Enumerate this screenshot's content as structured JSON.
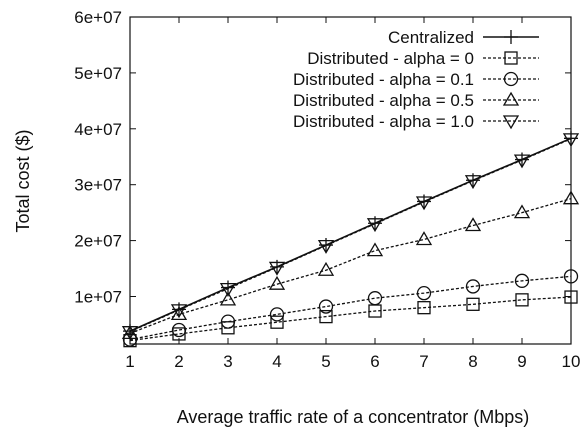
{
  "chart_data": {
    "type": "line",
    "xlabel": "Average traffic rate of a concentrator (Mbps)",
    "ylabel": "Total cost ($)",
    "x": [
      1,
      2,
      3,
      4,
      5,
      6,
      7,
      8,
      9,
      10
    ],
    "xlim": [
      1,
      10
    ],
    "ylim": [
      1500000,
      60000000
    ],
    "x_ticks": [
      "1",
      "2",
      "3",
      "4",
      "5",
      "6",
      "7",
      "8",
      "9",
      "10"
    ],
    "y_ticks": [
      {
        "value": 10000000,
        "label": "1e+07"
      },
      {
        "value": 20000000,
        "label": "2e+07"
      },
      {
        "value": 30000000,
        "label": "3e+07"
      },
      {
        "value": 40000000,
        "label": "4e+07"
      },
      {
        "value": 50000000,
        "label": "5e+07"
      },
      {
        "value": 60000000,
        "label": "6e+07"
      }
    ],
    "grid": false,
    "legend_position": "top-right",
    "series": [
      {
        "name": "Centralized",
        "marker": "plus",
        "dash": "solid",
        "values": [
          3800000,
          7700000,
          11600000,
          15300000,
          19200000,
          23100000,
          27000000,
          30800000,
          34500000,
          38300000
        ]
      },
      {
        "name": "Distributed - alpha = 0",
        "marker": "square",
        "dash": "dashed",
        "values": [
          2100000,
          3300000,
          4400000,
          5400000,
          6400000,
          7400000,
          8000000,
          8600000,
          9400000,
          9900000
        ]
      },
      {
        "name": "Distributed - alpha = 0.1",
        "marker": "circle",
        "dash": "dashed",
        "values": [
          2300000,
          4000000,
          5500000,
          6800000,
          8200000,
          9700000,
          10600000,
          11800000,
          12800000,
          13600000
        ]
      },
      {
        "name": "Distributed - alpha = 0.5",
        "marker": "triangle-up",
        "dash": "dashed",
        "values": [
          3400000,
          6800000,
          9400000,
          12200000,
          14700000,
          18200000,
          20200000,
          22700000,
          25000000,
          27500000
        ]
      },
      {
        "name": "Distributed - alpha = 1.0",
        "marker": "triangle-down",
        "dash": "dashed",
        "values": [
          3700000,
          7600000,
          11400000,
          15200000,
          19100000,
          23000000,
          26900000,
          30700000,
          34400000,
          38200000
        ]
      }
    ]
  }
}
